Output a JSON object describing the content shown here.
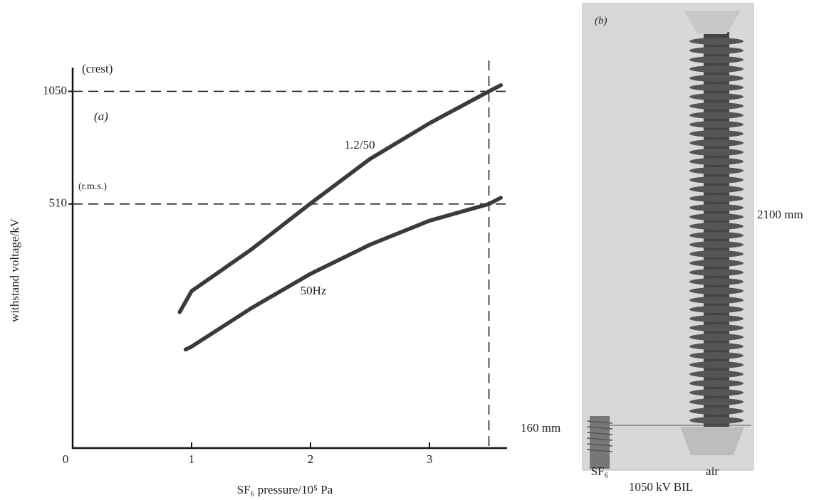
{
  "chart_data": {
    "type": "line",
    "x_label": "SF₆ pressure/10⁵ Pa",
    "y_label": "withstand voltage/kV",
    "panel_label": "(a)",
    "y_axis_note": "(crest)",
    "y2_axis_note": "(r.m.s.)",
    "xlim": [
      0,
      3.64
    ],
    "xticks": [
      0,
      1,
      2,
      3
    ],
    "ylim": [
      0,
      1120
    ],
    "yticks": [
      1050
    ],
    "y2lim": [
      0,
      795
    ],
    "y2ticks": [
      510
    ],
    "reference_x": 3.5,
    "series": [
      {
        "name": "1.2/50",
        "color": "#3a3a3a",
        "x": [
          0.9,
          1,
          1.5,
          2,
          2.5,
          3,
          3.5,
          3.6
        ],
        "values": [
          400,
          462,
          584,
          720,
          851,
          956,
          1050,
          1068
        ]
      },
      {
        "name": "50Hz",
        "color": "#3a3a3a",
        "axis": "y2",
        "x": [
          0.95,
          1,
          1.5,
          2,
          2.5,
          3,
          3.5,
          3.6
        ],
        "values": [
          206,
          212,
          292,
          364,
          425,
          475,
          510,
          523
        ]
      }
    ]
  },
  "photo": {
    "panel_label": "(b)",
    "height_air": "2100 mm",
    "height_sf6": "160 mm",
    "label_sf6": "SF₆",
    "label_air": "air",
    "caption": "1050 kV BIL"
  }
}
